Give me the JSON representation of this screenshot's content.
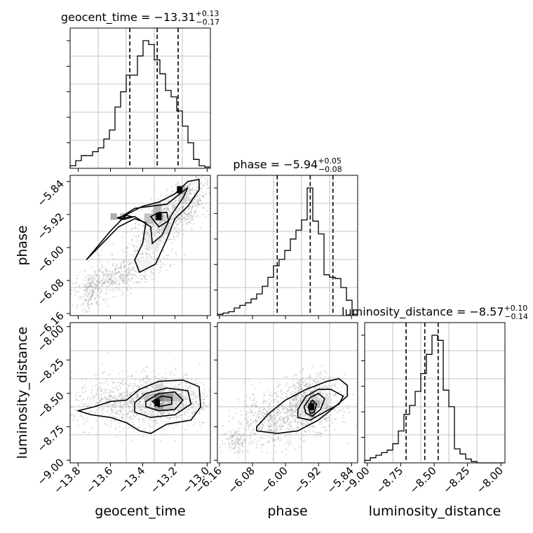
{
  "chart_data": {
    "type": "corner",
    "parameters": [
      {
        "key": "geocent_time",
        "label": "geocent_time",
        "title_prefix": "geocent_time = ",
        "median": "−13.31",
        "plus": "+0.13",
        "minus": "−0.17",
        "range": [
          -13.85,
          -12.98
        ],
        "ticks": [
          -13.8,
          -13.6,
          -13.4,
          -13.2,
          -13.0
        ],
        "tick_labels": [
          "−13.8",
          "−13.6",
          "−13.4",
          "−13.2",
          "−13.0"
        ],
        "quantiles": [
          -13.48,
          -13.31,
          -13.18
        ],
        "hist_x_start": -13.85,
        "hist_bin_width": 0.0348,
        "hist_counts": [
          0.02,
          0.06,
          0.1,
          0.1,
          0.13,
          0.16,
          0.23,
          0.3,
          0.48,
          0.6,
          0.73,
          0.73,
          0.88,
          1.0,
          0.97,
          0.85,
          0.74,
          0.61,
          0.56,
          0.45,
          0.33,
          0.2,
          0.07,
          0.02,
          0.01
        ]
      },
      {
        "key": "phase",
        "label": "phase",
        "title_prefix": "phase = ",
        "median": "−5.94",
        "plus": "+0.05",
        "minus": "−0.08",
        "range": [
          -6.165,
          -5.825
        ],
        "ticks": [
          -6.16,
          -6.08,
          -6.0,
          -5.92,
          -5.84
        ],
        "tick_labels": [
          "−6.16",
          "−6.08",
          "−6.00",
          "−5.92",
          "−5.84"
        ],
        "quantiles": [
          -6.02,
          -5.94,
          -5.885
        ],
        "hist_x_start": -6.165,
        "hist_bin_width": 0.0136,
        "hist_counts": [
          0.01,
          0.02,
          0.03,
          0.06,
          0.08,
          0.1,
          0.13,
          0.17,
          0.23,
          0.3,
          0.39,
          0.44,
          0.51,
          0.6,
          0.67,
          0.75,
          1.0,
          0.74,
          0.64,
          0.32,
          0.3,
          0.29,
          0.22,
          0.12,
          0.01
        ]
      },
      {
        "key": "luminosity_distance",
        "label": "luminosity_distance",
        "title_prefix": "luminosity_distance = ",
        "median": "−8.57",
        "plus": "+0.10",
        "minus": "−0.14",
        "range": [
          -9.02,
          -7.97
        ],
        "ticks": [
          -9.0,
          -8.75,
          -8.5,
          -8.25,
          -8.0
        ],
        "tick_labels": [
          "−9.00",
          "−8.75",
          "−8.50",
          "−8.25",
          "−8.00"
        ],
        "quantiles": [
          -8.71,
          -8.57,
          -8.47
        ],
        "hist_x_start": -9.02,
        "hist_bin_width": 0.042,
        "hist_counts": [
          0.02,
          0.04,
          0.06,
          0.08,
          0.1,
          0.15,
          0.25,
          0.38,
          0.45,
          0.56,
          0.7,
          0.85,
          1.0,
          0.96,
          0.57,
          0.44,
          0.11,
          0.07,
          0.03,
          0.01,
          0.0,
          0.0,
          0.0,
          0.0,
          0.0
        ]
      }
    ],
    "pairs": [
      {
        "x": "geocent_time",
        "y": "phase",
        "cells": [
          {
            "x": -13.58,
            "y": -5.925,
            "w": 0.04,
            "h": 0.016,
            "v": 0.4
          },
          {
            "x": -13.52,
            "y": -5.925,
            "w": 0.04,
            "h": 0.016,
            "v": 0.3
          },
          {
            "x": -13.36,
            "y": -5.93,
            "w": 0.06,
            "h": 0.025,
            "v": 0.3
          },
          {
            "x": -13.3,
            "y": -5.925,
            "w": 0.05,
            "h": 0.02,
            "v": 0.55
          },
          {
            "x": -13.31,
            "y": -5.905,
            "w": 0.05,
            "h": 0.02,
            "v": 0.35
          },
          {
            "x": -13.26,
            "y": -5.955,
            "w": 0.05,
            "h": 0.025,
            "v": 0.2
          },
          {
            "x": -13.16,
            "y": -5.86,
            "w": 0.05,
            "h": 0.02,
            "v": 0.35
          },
          {
            "x": -13.15,
            "y": -5.88,
            "w": 0.05,
            "h": 0.02,
            "v": 0.2
          },
          {
            "x": -13.34,
            "y": -5.99,
            "w": 0.08,
            "h": 0.03,
            "v": 0.1
          },
          {
            "x": -13.38,
            "y": -6.04,
            "w": 0.08,
            "h": 0.03,
            "v": 0.06
          }
        ],
        "blobs": [
          {
            "cx": -13.28,
            "cy": -5.94,
            "sx": 0.13,
            "sy": 0.03,
            "rot": -35,
            "n": 700
          },
          {
            "cx": -13.55,
            "cy": -6.07,
            "sx": 0.16,
            "sy": 0.02,
            "rot": -20,
            "n": 500
          },
          {
            "cx": -13.72,
            "cy": -6.11,
            "sx": 0.05,
            "sy": 0.03,
            "rot": -45,
            "n": 150
          },
          {
            "cx": -13.1,
            "cy": -5.89,
            "sx": 0.07,
            "sy": 0.03,
            "rot": -40,
            "n": 250
          }
        ],
        "contours": [
          [
            [
              -13.75,
              -6.03
            ],
            [
              -13.6,
              -5.96
            ],
            [
              -13.5,
              -5.92
            ],
            [
              -13.4,
              -5.9
            ],
            [
              -13.3,
              -5.89
            ],
            [
              -13.2,
              -5.87
            ],
            [
              -13.12,
              -5.84
            ],
            [
              -13.05,
              -5.835
            ],
            [
              -13.05,
              -5.86
            ],
            [
              -13.12,
              -5.9
            ],
            [
              -13.2,
              -5.93
            ],
            [
              -13.25,
              -5.98
            ],
            [
              -13.32,
              -6.04
            ],
            [
              -13.42,
              -6.06
            ],
            [
              -13.45,
              -6.03
            ],
            [
              -13.4,
              -5.99
            ],
            [
              -13.38,
              -5.94
            ],
            [
              -13.45,
              -5.93
            ],
            [
              -13.55,
              -5.95
            ],
            [
              -13.65,
              -5.99
            ],
            [
              -13.75,
              -6.03
            ]
          ],
          [
            [
              -13.55,
              -5.93
            ],
            [
              -13.45,
              -5.905
            ],
            [
              -13.35,
              -5.9
            ],
            [
              -13.25,
              -5.895
            ],
            [
              -13.17,
              -5.87
            ],
            [
              -13.12,
              -5.855
            ],
            [
              -13.15,
              -5.88
            ],
            [
              -13.22,
              -5.92
            ],
            [
              -13.28,
              -5.97
            ],
            [
              -13.34,
              -5.99
            ],
            [
              -13.35,
              -5.95
            ],
            [
              -13.45,
              -5.925
            ],
            [
              -13.55,
              -5.93
            ]
          ],
          [
            [
              -13.35,
              -5.925
            ],
            [
              -13.3,
              -5.915
            ],
            [
              -13.25,
              -5.915
            ],
            [
              -13.24,
              -5.935
            ],
            [
              -13.3,
              -5.95
            ],
            [
              -13.35,
              -5.925
            ]
          ],
          [
            [
              -13.56,
              -5.928
            ],
            [
              -13.5,
              -5.922
            ],
            [
              -13.46,
              -5.926
            ],
            [
              -13.52,
              -5.932
            ],
            [
              -13.56,
              -5.928
            ]
          ]
        ],
        "marks": [
          [
            -13.3,
            -5.925
          ],
          [
            -13.17,
            -5.86
          ]
        ]
      },
      {
        "x": "geocent_time",
        "y": "luminosity_distance",
        "cells": [
          {
            "x": -13.3,
            "y": -8.53,
            "w": 0.06,
            "h": 0.06,
            "v": 0.6
          },
          {
            "x": -13.24,
            "y": -8.53,
            "w": 0.06,
            "h": 0.06,
            "v": 0.5
          },
          {
            "x": -13.3,
            "y": -8.6,
            "w": 0.06,
            "h": 0.06,
            "v": 0.45
          },
          {
            "x": -13.36,
            "y": -8.53,
            "w": 0.06,
            "h": 0.06,
            "v": 0.3
          },
          {
            "x": -13.18,
            "y": -8.53,
            "w": 0.06,
            "h": 0.06,
            "v": 0.3
          },
          {
            "x": -13.24,
            "y": -8.6,
            "w": 0.06,
            "h": 0.06,
            "v": 0.25
          },
          {
            "x": -13.3,
            "y": -8.46,
            "w": 0.06,
            "h": 0.06,
            "v": 0.2
          }
        ],
        "blobs": [
          {
            "cx": -13.3,
            "cy": -8.55,
            "sx": 0.16,
            "sy": 0.1,
            "rot": 0,
            "n": 1000
          },
          {
            "cx": -13.6,
            "cy": -8.58,
            "sx": 0.12,
            "sy": 0.09,
            "rot": 0,
            "n": 300
          }
        ],
        "contours": [
          [
            [
              -13.7,
              -8.6
            ],
            [
              -13.6,
              -8.56
            ],
            [
              -13.5,
              -8.55
            ],
            [
              -13.42,
              -8.47
            ],
            [
              -13.3,
              -8.41
            ],
            [
              -13.15,
              -8.4
            ],
            [
              -13.05,
              -8.45
            ],
            [
              -13.04,
              -8.6
            ],
            [
              -13.1,
              -8.7
            ],
            [
              -13.25,
              -8.73
            ],
            [
              -13.35,
              -8.8
            ],
            [
              -13.42,
              -8.78
            ],
            [
              -13.5,
              -8.72
            ],
            [
              -13.6,
              -8.68
            ],
            [
              -13.72,
              -8.66
            ],
            [
              -13.8,
              -8.63
            ],
            [
              -13.7,
              -8.6
            ]
          ],
          [
            [
              -13.45,
              -8.57
            ],
            [
              -13.38,
              -8.5
            ],
            [
              -13.25,
              -8.46
            ],
            [
              -13.12,
              -8.48
            ],
            [
              -13.1,
              -8.58
            ],
            [
              -13.2,
              -8.66
            ],
            [
              -13.35,
              -8.68
            ],
            [
              -13.45,
              -8.64
            ],
            [
              -13.45,
              -8.57
            ]
          ],
          [
            [
              -13.38,
              -8.56
            ],
            [
              -13.3,
              -8.5
            ],
            [
              -13.2,
              -8.49
            ],
            [
              -13.15,
              -8.55
            ],
            [
              -13.2,
              -8.62
            ],
            [
              -13.3,
              -8.63
            ],
            [
              -13.38,
              -8.6
            ],
            [
              -13.38,
              -8.56
            ]
          ],
          [
            [
              -13.34,
              -8.56
            ],
            [
              -13.28,
              -8.52
            ],
            [
              -13.22,
              -8.53
            ],
            [
              -13.22,
              -8.58
            ],
            [
              -13.3,
              -8.6
            ],
            [
              -13.34,
              -8.56
            ]
          ]
        ],
        "marks": [
          [
            -13.31,
            -8.57
          ]
        ]
      },
      {
        "x": "phase",
        "y": "luminosity_distance",
        "cells": [
          {
            "x": -5.935,
            "y": -8.58,
            "w": 0.012,
            "h": 0.06,
            "v": 0.6
          },
          {
            "x": -5.935,
            "y": -8.65,
            "w": 0.012,
            "h": 0.06,
            "v": 0.5
          },
          {
            "x": -5.923,
            "y": -8.58,
            "w": 0.012,
            "h": 0.06,
            "v": 0.4
          },
          {
            "x": -5.947,
            "y": -8.58,
            "w": 0.012,
            "h": 0.06,
            "v": 0.3
          },
          {
            "x": -5.935,
            "y": -8.51,
            "w": 0.012,
            "h": 0.06,
            "v": 0.3
          },
          {
            "x": -5.96,
            "y": -8.6,
            "w": 0.02,
            "h": 0.06,
            "v": 0.15
          },
          {
            "x": -5.9,
            "y": -8.55,
            "w": 0.02,
            "h": 0.06,
            "v": 0.15
          }
        ],
        "blobs": [
          {
            "cx": -5.94,
            "cy": -8.57,
            "sx": 0.035,
            "sy": 0.1,
            "rot": 0,
            "n": 900
          },
          {
            "cx": -6.04,
            "cy": -8.7,
            "sx": 0.04,
            "sy": 0.1,
            "rot": 0,
            "n": 500
          },
          {
            "cx": -6.12,
            "cy": -8.85,
            "sx": 0.015,
            "sy": 0.05,
            "rot": 0,
            "n": 120
          }
        ],
        "contours": [
          [
            [
              -6.07,
              -8.75
            ],
            [
              -6.04,
              -8.65
            ],
            [
              -6.0,
              -8.55
            ],
            [
              -5.95,
              -8.47
            ],
            [
              -5.9,
              -8.41
            ],
            [
              -5.87,
              -8.39
            ],
            [
              -5.85,
              -8.44
            ],
            [
              -5.85,
              -8.52
            ],
            [
              -5.88,
              -8.6
            ],
            [
              -5.92,
              -8.7
            ],
            [
              -5.97,
              -8.78
            ],
            [
              -6.02,
              -8.8
            ],
            [
              -6.07,
              -8.78
            ],
            [
              -6.07,
              -8.75
            ]
          ],
          [
            [
              -5.97,
              -8.62
            ],
            [
              -5.95,
              -8.52
            ],
            [
              -5.92,
              -8.47
            ],
            [
              -5.89,
              -8.47
            ],
            [
              -5.86,
              -8.52
            ],
            [
              -5.87,
              -8.58
            ],
            [
              -5.9,
              -8.63
            ],
            [
              -5.94,
              -8.7
            ],
            [
              -5.97,
              -8.68
            ],
            [
              -5.97,
              -8.62
            ]
          ],
          [
            [
              -5.955,
              -8.6
            ],
            [
              -5.94,
              -8.53
            ],
            [
              -5.92,
              -8.5
            ],
            [
              -5.905,
              -8.54
            ],
            [
              -5.915,
              -8.62
            ],
            [
              -5.935,
              -8.67
            ],
            [
              -5.95,
              -8.65
            ],
            [
              -5.955,
              -8.6
            ]
          ],
          [
            [
              -5.945,
              -8.6
            ],
            [
              -5.935,
              -8.55
            ],
            [
              -5.925,
              -8.58
            ],
            [
              -5.93,
              -8.64
            ],
            [
              -5.94,
              -8.65
            ],
            [
              -5.945,
              -8.6
            ]
          ]
        ],
        "marks": [
          [
            -5.937,
            -8.6
          ]
        ]
      }
    ]
  }
}
